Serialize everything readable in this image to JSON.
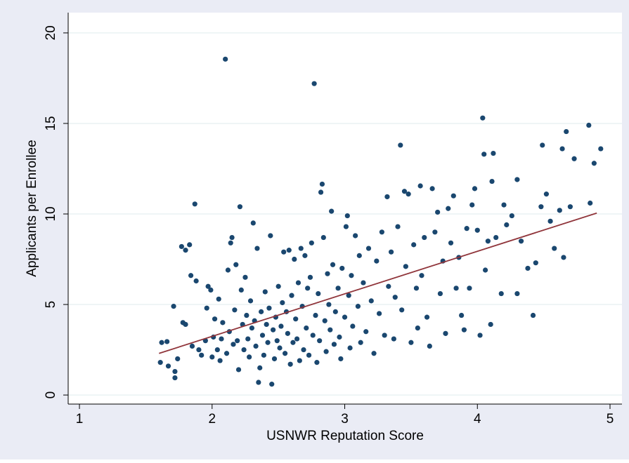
{
  "chart_data": {
    "type": "scatter",
    "xlabel": "USNWR Reputation Score",
    "ylabel": "Applicants per Enrollee",
    "xlim": [
      0.915,
      5.09
    ],
    "ylim": [
      -0.5,
      21.12
    ],
    "xticks": [
      1,
      2,
      3,
      4,
      5
    ],
    "yticks": [
      0,
      5,
      10,
      15,
      20
    ],
    "grid": true,
    "series": [
      {
        "type": "scatter",
        "color": "#1a476f",
        "x": [
          1.61,
          1.62,
          1.66,
          1.67,
          1.72,
          1.72,
          1.71,
          1.74,
          1.77,
          1.8,
          1.78,
          1.8,
          1.83,
          1.84,
          1.87,
          1.88,
          1.85,
          1.9,
          1.92,
          1.95,
          1.96,
          1.97,
          1.99,
          2.0,
          2.01,
          2.02,
          2.04,
          2.05,
          2.06,
          2.07,
          2.08,
          2.1,
          2.11,
          2.12,
          2.13,
          2.14,
          2.15,
          2.16,
          2.17,
          2.18,
          2.19,
          2.2,
          2.21,
          2.22,
          2.23,
          2.24,
          2.25,
          2.26,
          2.27,
          2.28,
          2.29,
          2.3,
          2.31,
          2.32,
          2.33,
          2.34,
          2.35,
          2.36,
          2.37,
          2.38,
          2.39,
          2.4,
          2.41,
          2.42,
          2.43,
          2.44,
          2.45,
          2.46,
          2.47,
          2.48,
          2.49,
          2.5,
          2.51,
          2.52,
          2.53,
          2.54,
          2.55,
          2.56,
          2.57,
          2.58,
          2.59,
          2.6,
          2.61,
          2.62,
          2.63,
          2.64,
          2.65,
          2.66,
          2.67,
          2.68,
          2.69,
          2.7,
          2.71,
          2.72,
          2.73,
          2.74,
          2.75,
          2.76,
          2.77,
          2.78,
          2.79,
          2.8,
          2.81,
          2.82,
          2.83,
          2.84,
          2.85,
          2.86,
          2.87,
          2.88,
          2.89,
          2.9,
          2.91,
          2.92,
          2.93,
          2.95,
          2.96,
          2.97,
          2.98,
          3.0,
          3.01,
          3.02,
          3.03,
          3.04,
          3.05,
          3.06,
          3.08,
          3.1,
          3.11,
          3.12,
          3.14,
          3.16,
          3.18,
          3.2,
          3.22,
          3.24,
          3.26,
          3.28,
          3.3,
          3.32,
          3.33,
          3.35,
          3.37,
          3.38,
          3.4,
          3.42,
          3.43,
          3.45,
          3.46,
          3.48,
          3.5,
          3.52,
          3.54,
          3.55,
          3.57,
          3.58,
          3.6,
          3.62,
          3.64,
          3.66,
          3.68,
          3.7,
          3.72,
          3.74,
          3.76,
          3.78,
          3.8,
          3.82,
          3.84,
          3.86,
          3.88,
          3.9,
          3.92,
          3.94,
          3.96,
          3.98,
          4.0,
          4.02,
          4.04,
          4.05,
          4.06,
          4.08,
          4.1,
          4.11,
          4.12,
          4.14,
          4.18,
          4.2,
          4.22,
          4.26,
          4.3,
          4.3,
          4.33,
          4.38,
          4.42,
          4.44,
          4.48,
          4.49,
          4.52,
          4.55,
          4.58,
          4.62,
          4.64,
          4.65,
          4.67,
          4.7,
          4.73,
          4.84,
          4.85,
          4.88,
          4.93
        ],
        "values": [
          1.8,
          2.9,
          2.95,
          1.6,
          1.3,
          0.95,
          4.9,
          2.0,
          8.2,
          8.0,
          4.0,
          3.9,
          8.3,
          6.6,
          10.55,
          6.3,
          2.7,
          2.5,
          2.2,
          3.0,
          4.8,
          6.0,
          5.8,
          2.1,
          3.2,
          4.2,
          2.5,
          5.3,
          1.9,
          3.1,
          4.0,
          18.55,
          2.3,
          6.9,
          3.5,
          8.4,
          8.7,
          2.8,
          4.7,
          7.2,
          3.0,
          1.4,
          10.4,
          5.8,
          3.9,
          2.5,
          6.5,
          4.4,
          3.1,
          2.1,
          5.2,
          3.7,
          9.5,
          4.1,
          2.7,
          8.1,
          0.7,
          1.5,
          4.6,
          3.3,
          2.2,
          5.7,
          3.9,
          2.9,
          4.8,
          8.8,
          0.6,
          3.6,
          2.0,
          4.3,
          3.0,
          6.0,
          2.6,
          3.8,
          5.1,
          7.9,
          2.3,
          4.6,
          3.4,
          8.0,
          1.7,
          5.5,
          2.9,
          7.5,
          4.2,
          3.1,
          6.2,
          1.9,
          8.1,
          4.9,
          2.5,
          7.7,
          3.7,
          5.9,
          2.2,
          6.5,
          8.4,
          3.3,
          17.2,
          4.4,
          1.8,
          5.6,
          3.0,
          11.2,
          11.65,
          8.7,
          4.1,
          2.4,
          6.7,
          5.0,
          3.6,
          10.15,
          7.2,
          2.8,
          4.6,
          5.9,
          3.2,
          2.0,
          7.0,
          4.3,
          9.3,
          9.9,
          5.5,
          2.6,
          6.6,
          3.8,
          8.8,
          4.9,
          7.7,
          2.9,
          6.2,
          3.5,
          8.1,
          5.2,
          2.3,
          7.4,
          4.5,
          9.0,
          3.3,
          10.95,
          6.0,
          7.9,
          3.1,
          5.4,
          9.3,
          13.8,
          4.7,
          11.25,
          7.1,
          11.1,
          2.9,
          8.3,
          5.9,
          3.7,
          11.55,
          6.6,
          8.7,
          4.3,
          2.7,
          11.4,
          9.0,
          10.1,
          5.6,
          7.4,
          3.4,
          10.3,
          8.4,
          11.0,
          5.9,
          7.6,
          4.4,
          3.6,
          9.2,
          5.9,
          10.5,
          11.4,
          9.1,
          3.3,
          15.3,
          13.3,
          6.9,
          8.5,
          3.9,
          11.8,
          13.35,
          8.7,
          5.6,
          10.5,
          9.4,
          9.9,
          11.9,
          5.6,
          8.5,
          7.0,
          4.4,
          7.3,
          10.4,
          13.8,
          11.1,
          9.6,
          8.1,
          10.2,
          13.6,
          7.6,
          14.55,
          10.4,
          13.05,
          14.9,
          10.6,
          12.8,
          13.6
        ]
      },
      {
        "type": "line",
        "color": "#90353b",
        "x": [
          1.6,
          4.9
        ],
        "values": [
          2.3,
          10.05
        ]
      }
    ]
  }
}
